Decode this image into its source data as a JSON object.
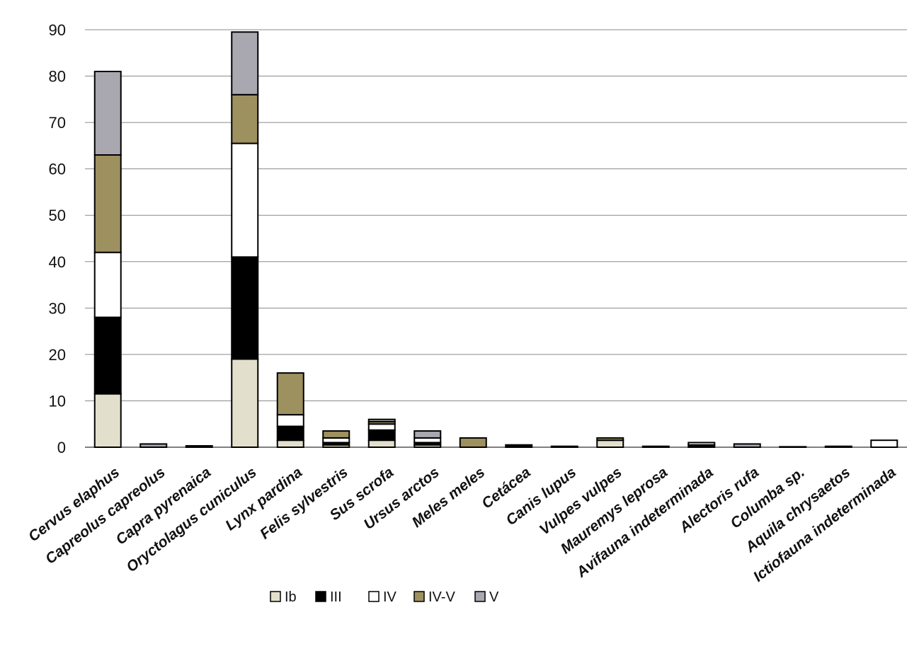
{
  "chart_data": {
    "type": "bar",
    "stacked": true,
    "title": "",
    "xlabel": "",
    "ylabel": "",
    "ylim": [
      0,
      90
    ],
    "yticks": [
      0,
      10,
      20,
      30,
      40,
      50,
      60,
      70,
      80,
      90
    ],
    "grid": "horizontal",
    "legend_position": "bottom",
    "categories": [
      "Cervus elaphus",
      "Capreolus capreolus",
      "Capra pyrenaica",
      "Oryctolagus cuniculus",
      "Lynx pardina",
      "Felis sylvestris",
      "Sus scrofa",
      "Ursus arctos",
      "Meles meles",
      "Cetácea",
      "Canis lupus",
      "Vulpes vulpes",
      "Mauremys leprosa",
      "Avifauna indeterminada",
      "Alectoris rufa",
      "Columba sp.",
      "Aquila chrysaetos",
      "Ictiofauna indeterminada"
    ],
    "series": [
      {
        "name": "Ib",
        "color": "#e2dfcc",
        "values": [
          11.5,
          0,
          0,
          19,
          1.5,
          0.5,
          1.5,
          0.5,
          0,
          0,
          0,
          1.5,
          0,
          0,
          0,
          0,
          0,
          0
        ]
      },
      {
        "name": "III",
        "color": "#000000",
        "values": [
          16.5,
          0,
          0.3,
          22,
          3,
          0.5,
          2.2,
          0.5,
          0,
          0.5,
          0.2,
          0,
          0.2,
          0.5,
          0,
          0,
          0.2,
          0
        ]
      },
      {
        "name": "IV",
        "color": "#ffffff",
        "values": [
          14,
          0,
          0,
          24.5,
          2.5,
          1,
          1.3,
          1,
          0,
          0,
          0,
          0,
          0,
          0.5,
          0,
          0,
          0,
          1.5
        ]
      },
      {
        "name": "IV-V",
        "color": "#9e9160",
        "values": [
          21,
          0,
          0,
          10.5,
          9,
          1.5,
          0.5,
          0,
          2,
          0,
          0,
          0.5,
          0,
          0,
          0,
          0,
          0,
          0
        ]
      },
      {
        "name": "V",
        "color": "#a9a8b0",
        "values": [
          18,
          0.7,
          0,
          13.5,
          0,
          0,
          0.5,
          1.5,
          0,
          0,
          0,
          0,
          0,
          0,
          0.7,
          0.1,
          0,
          0
        ]
      }
    ]
  }
}
